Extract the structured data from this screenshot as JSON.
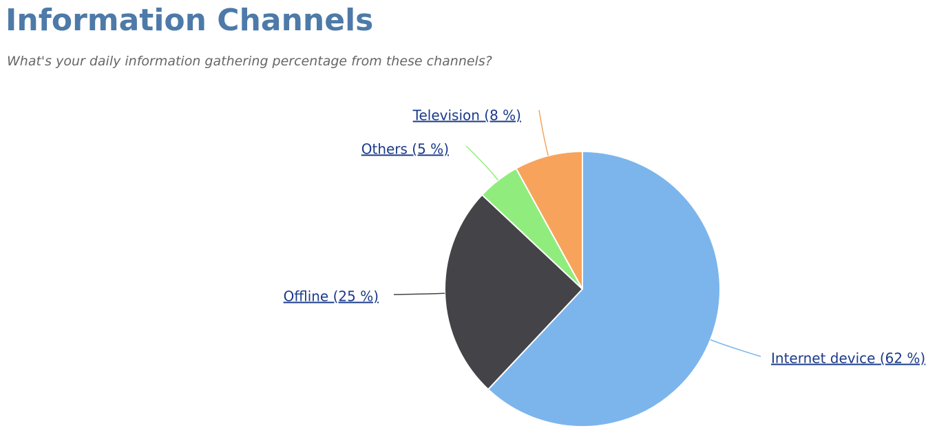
{
  "chart_data": {
    "type": "pie",
    "title": "Information Channels",
    "subtitle": "What's your daily information gathering percentage from these channels?",
    "values": [
      62,
      25,
      5,
      8
    ],
    "value_labels": [
      "Internet device (62 %)",
      "Offline (25 %)",
      "Others (5 %)",
      "Television (8 %)"
    ],
    "colors": [
      "#7cb5ec",
      "#434348",
      "#90ed7d",
      "#f7a35c"
    ]
  }
}
